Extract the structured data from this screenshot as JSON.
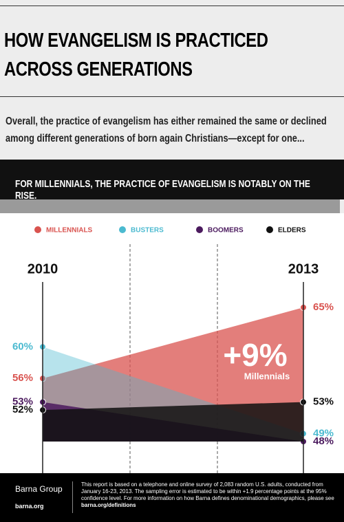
{
  "chart_data": {
    "type": "slope",
    "title": "HOW EVANGELISM IS PRACTICED ACROSS GENERATIONS",
    "subtitle": "Overall, the practice of evangelism has either remained the same or declined among different generations of born again Christians—except for one...",
    "banner": "FOR MILLENNIALS, THE PRACTICE OF EVANGELISM IS NOTABLY ON THE RISE.",
    "categories": [
      "2010",
      "2013"
    ],
    "ylim": [
      48,
      65
    ],
    "series": [
      {
        "name": "MILLENNIALS",
        "color": "#d9534f",
        "values": [
          56,
          65
        ],
        "value_labels": [
          "56%",
          "65%"
        ]
      },
      {
        "name": "BUSTERS",
        "color": "#4bbad0",
        "values": [
          60,
          49
        ],
        "value_labels": [
          "60%",
          "49%"
        ]
      },
      {
        "name": "BOOMERS",
        "color": "#4b1a5e",
        "values": [
          53,
          48
        ],
        "value_labels": [
          "53%",
          "48%"
        ]
      },
      {
        "name": "ELDERS",
        "color": "#111111",
        "values": [
          52,
          53
        ],
        "value_labels": [
          "52%",
          "53%"
        ]
      }
    ],
    "annotations": [
      "+9%",
      "Millennials"
    ]
  },
  "footer": {
    "brand": "Barna Group",
    "url": "barna.org",
    "note": "This report is based on a telephone and online survey of 2,083 random U.S. adults, conducted from January 16-23, 2013. The sampling error is estimated to be within +1.9 percentage points at the 95% confidence level. For more information on how Barna defines denominational demographics, please see",
    "link": "barna.org/definitions"
  }
}
